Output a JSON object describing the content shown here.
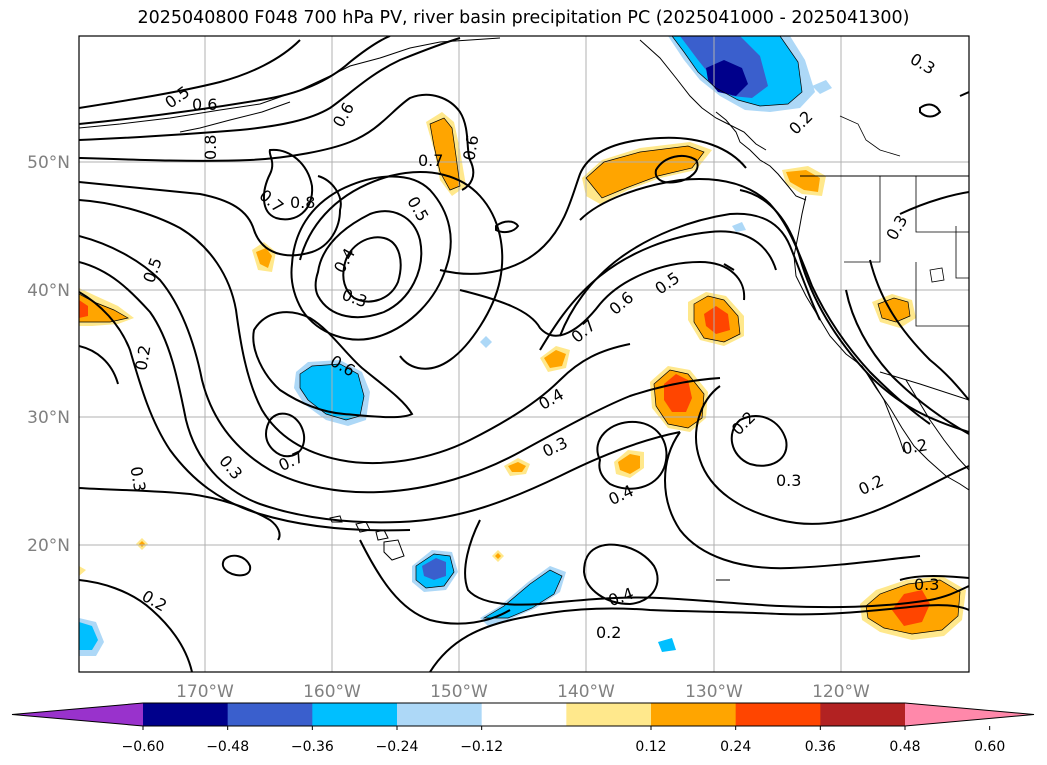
{
  "title": "2025040800 F048 700 hPa PV, river basin precipitation PC (2025041000 - 2025041300)",
  "map": {
    "lon_labels": [
      "170°W",
      "160°W",
      "150°W",
      "140°W",
      "130°W",
      "120°W"
    ],
    "lat_labels": [
      "50°N",
      "40°N",
      "30°N",
      "20°N"
    ],
    "contour_labels": [
      "0.5",
      "0.6",
      "0.8",
      "0.6",
      "0.7",
      "0.8",
      "0.6",
      "0.7",
      "0.5",
      "0.4",
      "0.3",
      "0.5",
      "0.2",
      "0.6",
      "0.7",
      "0.3",
      "0.3",
      "0.2",
      "0.7",
      "0.6",
      "0.5",
      "0.4",
      "0.3",
      "0.4",
      "0.2",
      "0.3",
      "0.3",
      "0.2",
      "0.2",
      "0.4",
      "0.2",
      "0.3",
      "0.2",
      "0.3"
    ],
    "line_color": "#000000",
    "grid_color": "#b0b0b0",
    "land_color": "#000000"
  },
  "colorbar": {
    "colors": [
      "#9932cc",
      "#00008b",
      "#3a5fcd",
      "#00bfff",
      "#add8f7",
      "#ffffff",
      "#ffe88c",
      "#ffa500",
      "#ff4500",
      "#b22222",
      "#ff88aa"
    ],
    "labels": [
      "−0.60",
      "−0.48",
      "−0.36",
      "−0.24",
      "−0.12",
      "0.12",
      "0.24",
      "0.36",
      "0.48",
      "0.60"
    ]
  },
  "fill_colors": {
    "light_blue": "#add8f7",
    "blue": "#00bfff",
    "mid_blue": "#3a5fcd",
    "dark_blue": "#00008b",
    "light_orange": "#ffe88c",
    "orange": "#ffa500",
    "red_orange": "#ff4500"
  }
}
